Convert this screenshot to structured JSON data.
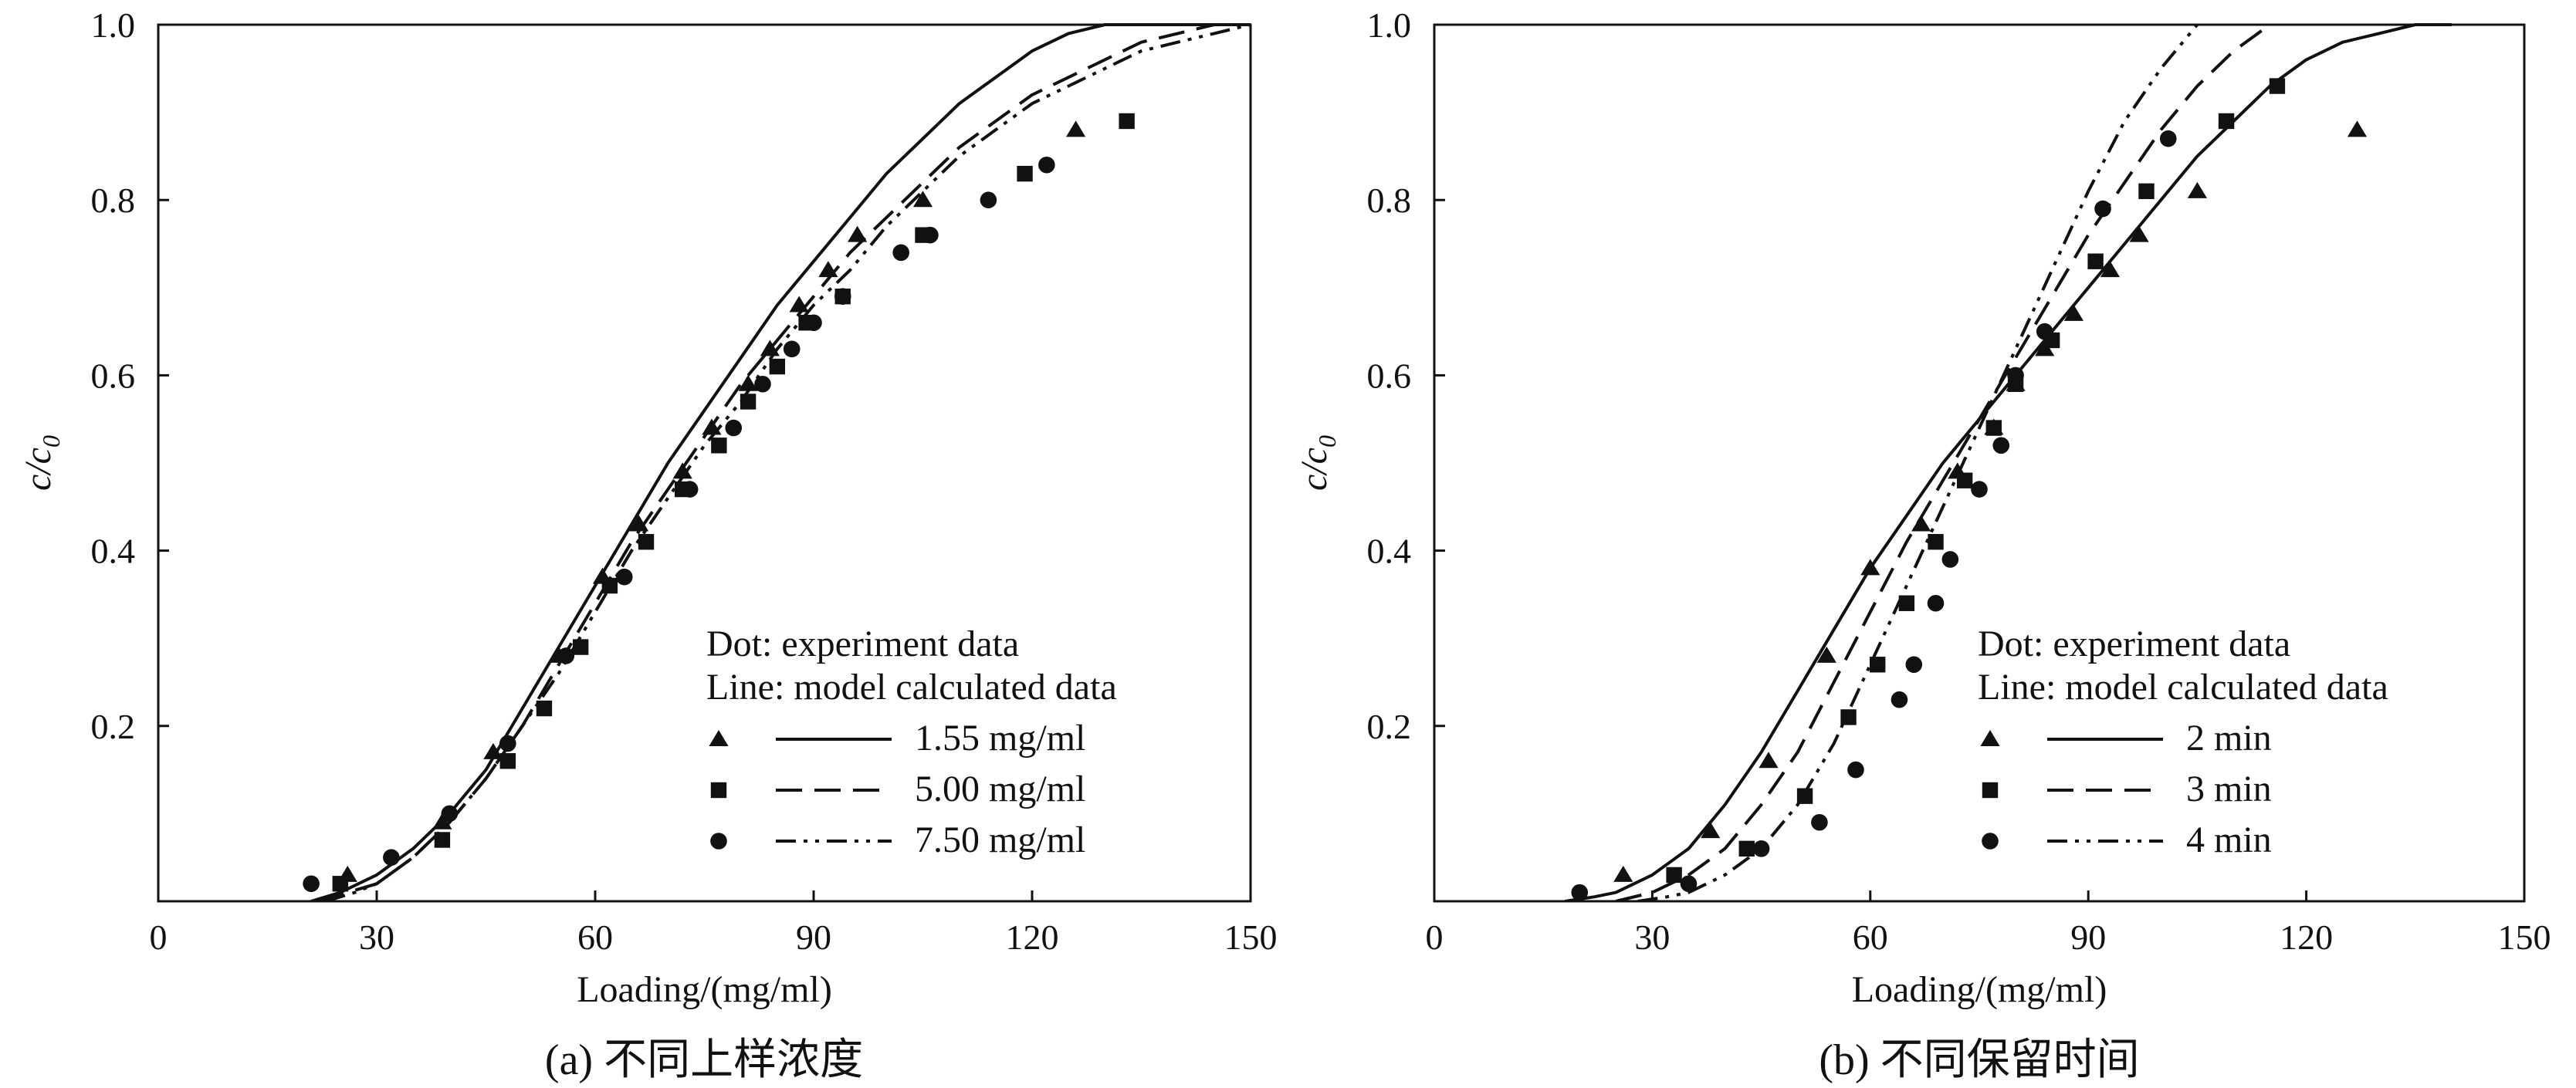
{
  "chart_data": [
    {
      "type": "scatter",
      "panel": "a",
      "caption": "(a) 不同上样浓度",
      "title": "",
      "xlabel": "Loading/(mg/ml)",
      "ylabel_main": "c/c",
      "ylabel_sub": "0",
      "xlim": [
        0,
        150
      ],
      "ylim": [
        0,
        1.0
      ],
      "xticks": [
        "0",
        "30",
        "60",
        "90",
        "120",
        "150"
      ],
      "yticks": [
        "0.2",
        "0.4",
        "0.6",
        "0.8",
        "1.0"
      ],
      "legend_title_1": "Dot: experiment data",
      "legend_title_2": "Line: model calculated data",
      "legend_position": "lower-right",
      "series": [
        {
          "name": "1.55 mg/ml",
          "marker": "triangle",
          "line": "solid",
          "points": [
            [
              26,
              0.03
            ],
            [
              39,
              0.09
            ],
            [
              46,
              0.17
            ],
            [
              55,
              0.28
            ],
            [
              61,
              0.37
            ],
            [
              66,
              0.43
            ],
            [
              72,
              0.49
            ],
            [
              76,
              0.54
            ],
            [
              81,
              0.59
            ],
            [
              84,
              0.63
            ],
            [
              88,
              0.68
            ],
            [
              92,
              0.72
            ],
            [
              96,
              0.76
            ],
            [
              105,
              0.8
            ],
            [
              126,
              0.88
            ]
          ],
          "curve": [
            [
              21,
              0
            ],
            [
              25,
              0.01
            ],
            [
              30,
              0.03
            ],
            [
              35,
              0.06
            ],
            [
              40,
              0.1
            ],
            [
              45,
              0.15
            ],
            [
              50,
              0.22
            ],
            [
              55,
              0.29
            ],
            [
              60,
              0.36
            ],
            [
              65,
              0.43
            ],
            [
              70,
              0.5
            ],
            [
              75,
              0.56
            ],
            [
              80,
              0.62
            ],
            [
              85,
              0.68
            ],
            [
              90,
              0.73
            ],
            [
              95,
              0.78
            ],
            [
              100,
              0.83
            ],
            [
              105,
              0.87
            ],
            [
              110,
              0.91
            ],
            [
              115,
              0.94
            ],
            [
              120,
              0.97
            ],
            [
              125,
              0.99
            ],
            [
              130,
              1.0
            ],
            [
              140,
              1.0
            ],
            [
              150,
              1.0
            ]
          ]
        },
        {
          "name": "5.00 mg/ml",
          "marker": "square",
          "line": "dashed",
          "points": [
            [
              25,
              0.02
            ],
            [
              39,
              0.07
            ],
            [
              48,
              0.16
            ],
            [
              53,
              0.22
            ],
            [
              58,
              0.29
            ],
            [
              62,
              0.36
            ],
            [
              67,
              0.41
            ],
            [
              72,
              0.47
            ],
            [
              77,
              0.52
            ],
            [
              81,
              0.57
            ],
            [
              85,
              0.61
            ],
            [
              89,
              0.66
            ],
            [
              94,
              0.69
            ],
            [
              105,
              0.76
            ],
            [
              119,
              0.83
            ],
            [
              133,
              0.89
            ]
          ],
          "curve": [
            [
              22,
              0
            ],
            [
              26,
              0.01
            ],
            [
              30,
              0.02
            ],
            [
              35,
              0.05
            ],
            [
              40,
              0.09
            ],
            [
              45,
              0.14
            ],
            [
              50,
              0.2
            ],
            [
              55,
              0.27
            ],
            [
              60,
              0.34
            ],
            [
              65,
              0.41
            ],
            [
              70,
              0.47
            ],
            [
              75,
              0.53
            ],
            [
              80,
              0.59
            ],
            [
              85,
              0.64
            ],
            [
              90,
              0.69
            ],
            [
              95,
              0.74
            ],
            [
              100,
              0.78
            ],
            [
              105,
              0.82
            ],
            [
              110,
              0.86
            ],
            [
              115,
              0.89
            ],
            [
              120,
              0.92
            ],
            [
              125,
              0.94
            ],
            [
              130,
              0.96
            ],
            [
              135,
              0.98
            ],
            [
              140,
              0.99
            ],
            [
              145,
              1.0
            ],
            [
              150,
              1.0
            ]
          ]
        },
        {
          "name": "7.50 mg/ml",
          "marker": "circle",
          "line": "dash-dot-dot",
          "points": [
            [
              21,
              0.02
            ],
            [
              32,
              0.05
            ],
            [
              40,
              0.1
            ],
            [
              48,
              0.18
            ],
            [
              56,
              0.28
            ],
            [
              64,
              0.37
            ],
            [
              73,
              0.47
            ],
            [
              79,
              0.54
            ],
            [
              83,
              0.59
            ],
            [
              87,
              0.63
            ],
            [
              90,
              0.66
            ],
            [
              94,
              0.69
            ],
            [
              102,
              0.74
            ],
            [
              106,
              0.76
            ],
            [
              114,
              0.8
            ],
            [
              122,
              0.84
            ]
          ],
          "curve": [
            [
              23,
              0
            ],
            [
              27,
              0.01
            ],
            [
              30,
              0.02
            ],
            [
              35,
              0.05
            ],
            [
              40,
              0.09
            ],
            [
              45,
              0.14
            ],
            [
              50,
              0.2
            ],
            [
              55,
              0.26
            ],
            [
              60,
              0.33
            ],
            [
              65,
              0.4
            ],
            [
              70,
              0.46
            ],
            [
              75,
              0.52
            ],
            [
              80,
              0.57
            ],
            [
              85,
              0.63
            ],
            [
              90,
              0.68
            ],
            [
              95,
              0.72
            ],
            [
              100,
              0.77
            ],
            [
              105,
              0.81
            ],
            [
              110,
              0.85
            ],
            [
              115,
              0.88
            ],
            [
              120,
              0.91
            ],
            [
              125,
              0.93
            ],
            [
              130,
              0.95
            ],
            [
              135,
              0.97
            ],
            [
              140,
              0.98
            ],
            [
              145,
              0.99
            ],
            [
              150,
              1.0
            ]
          ]
        }
      ]
    },
    {
      "type": "scatter",
      "panel": "b",
      "caption": "(b) 不同保留时间",
      "title": "",
      "xlabel": "Loading/(mg/ml)",
      "ylabel_main": "c/c",
      "ylabel_sub": "0",
      "xlim": [
        0,
        150
      ],
      "ylim": [
        0,
        1.0
      ],
      "xticks": [
        "0",
        "30",
        "60",
        "90",
        "120",
        "150"
      ],
      "yticks": [
        "0.2",
        "0.4",
        "0.6",
        "0.8",
        "1.0"
      ],
      "legend_title_1": "Dot: experiment data",
      "legend_title_2": "Line: model calculated data",
      "legend_position": "lower-right",
      "series": [
        {
          "name": "2 min",
          "marker": "triangle",
          "line": "solid",
          "points": [
            [
              26,
              0.03
            ],
            [
              38,
              0.08
            ],
            [
              46,
              0.16
            ],
            [
              54,
              0.28
            ],
            [
              60,
              0.38
            ],
            [
              67,
              0.43
            ],
            [
              72,
              0.49
            ],
            [
              77,
              0.54
            ],
            [
              80,
              0.59
            ],
            [
              84,
              0.63
            ],
            [
              88,
              0.67
            ],
            [
              93,
              0.72
            ],
            [
              97,
              0.76
            ],
            [
              105,
              0.81
            ],
            [
              127,
              0.88
            ]
          ],
          "curve": [
            [
              18,
              0
            ],
            [
              22,
              0.005
            ],
            [
              25,
              0.01
            ],
            [
              30,
              0.03
            ],
            [
              35,
              0.06
            ],
            [
              40,
              0.11
            ],
            [
              45,
              0.17
            ],
            [
              50,
              0.24
            ],
            [
              55,
              0.31
            ],
            [
              60,
              0.38
            ],
            [
              65,
              0.44
            ],
            [
              70,
              0.5
            ],
            [
              75,
              0.55
            ],
            [
              80,
              0.6
            ],
            [
              85,
              0.65
            ],
            [
              90,
              0.7
            ],
            [
              95,
              0.75
            ],
            [
              100,
              0.8
            ],
            [
              105,
              0.85
            ],
            [
              110,
              0.89
            ],
            [
              115,
              0.93
            ],
            [
              120,
              0.96
            ],
            [
              125,
              0.98
            ],
            [
              130,
              0.99
            ],
            [
              135,
              1.0
            ],
            [
              140,
              1.0
            ]
          ]
        },
        {
          "name": "3 min",
          "marker": "square",
          "line": "dashed",
          "points": [
            [
              33,
              0.03
            ],
            [
              43,
              0.06
            ],
            [
              51,
              0.12
            ],
            [
              57,
              0.21
            ],
            [
              61,
              0.27
            ],
            [
              65,
              0.34
            ],
            [
              69,
              0.41
            ],
            [
              73,
              0.48
            ],
            [
              77,
              0.54
            ],
            [
              80,
              0.59
            ],
            [
              85,
              0.64
            ],
            [
              91,
              0.73
            ],
            [
              98,
              0.81
            ],
            [
              109,
              0.89
            ],
            [
              116,
              0.93
            ]
          ],
          "curve": [
            [
              25,
              0
            ],
            [
              30,
              0.01
            ],
            [
              35,
              0.03
            ],
            [
              40,
              0.06
            ],
            [
              45,
              0.11
            ],
            [
              50,
              0.17
            ],
            [
              55,
              0.25
            ],
            [
              60,
              0.33
            ],
            [
              65,
              0.41
            ],
            [
              70,
              0.48
            ],
            [
              75,
              0.55
            ],
            [
              80,
              0.62
            ],
            [
              85,
              0.69
            ],
            [
              90,
              0.76
            ],
            [
              95,
              0.82
            ],
            [
              100,
              0.88
            ],
            [
              105,
              0.93
            ],
            [
              110,
              0.97
            ],
            [
              115,
              1.0
            ]
          ]
        },
        {
          "name": "4 min",
          "marker": "circle",
          "line": "dash-dot-dot",
          "points": [
            [
              20,
              0.01
            ],
            [
              35,
              0.02
            ],
            [
              45,
              0.06
            ],
            [
              53,
              0.09
            ],
            [
              58,
              0.15
            ],
            [
              64,
              0.23
            ],
            [
              66,
              0.27
            ],
            [
              69,
              0.34
            ],
            [
              71,
              0.39
            ],
            [
              75,
              0.47
            ],
            [
              78,
              0.52
            ],
            [
              80,
              0.6
            ],
            [
              84,
              0.65
            ],
            [
              92,
              0.79
            ],
            [
              101,
              0.87
            ]
          ],
          "curve": [
            [
              28,
              0
            ],
            [
              32,
              0.005
            ],
            [
              35,
              0.01
            ],
            [
              40,
              0.03
            ],
            [
              45,
              0.06
            ],
            [
              50,
              0.11
            ],
            [
              55,
              0.18
            ],
            [
              60,
              0.27
            ],
            [
              65,
              0.36
            ],
            [
              70,
              0.45
            ],
            [
              75,
              0.54
            ],
            [
              80,
              0.63
            ],
            [
              85,
              0.72
            ],
            [
              90,
              0.81
            ],
            [
              95,
              0.89
            ],
            [
              100,
              0.95
            ],
            [
              105,
              1.0
            ]
          ]
        }
      ]
    }
  ]
}
